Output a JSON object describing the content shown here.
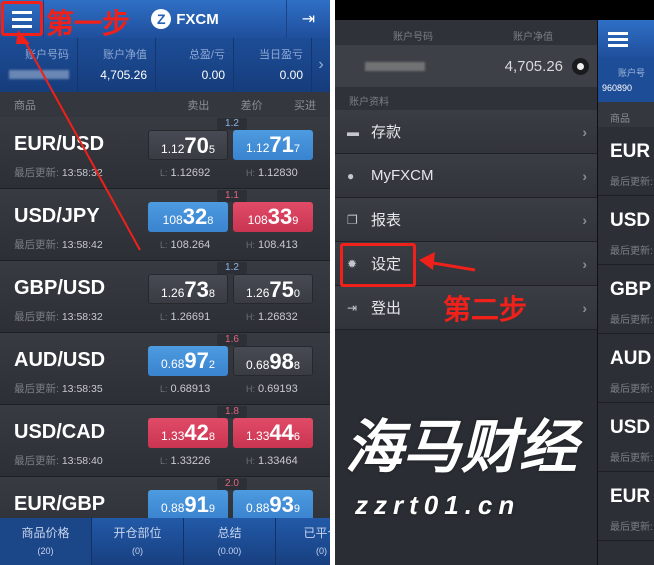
{
  "left": {
    "app_name": "FXCM",
    "account": {
      "labels": [
        "账户号码",
        "账户净值",
        "总盈/亏",
        "当日盈亏"
      ],
      "equity": "4,705.26",
      "total_pl": "0.00",
      "daily_pl": "0.00"
    },
    "columns": [
      "商品",
      "卖出",
      "差价",
      "买进"
    ],
    "update_label": "最后更新:",
    "rows": [
      {
        "symbol": "EUR/USD",
        "time": "13:58:32",
        "spread": "1.2",
        "sell": [
          "1.12",
          "70",
          "5"
        ],
        "buy": [
          "1.12",
          "71",
          "7"
        ],
        "sell_color": "gray",
        "buy_color": "blue",
        "low": "1.12692",
        "high": "1.12830"
      },
      {
        "symbol": "USD/JPY",
        "time": "13:58:42",
        "spread": "1.1",
        "sell": [
          "108",
          "32",
          "8"
        ],
        "buy": [
          "108",
          "33",
          "9"
        ],
        "sell_color": "blue",
        "buy_color": "red",
        "low": "108.264",
        "high": "108.413"
      },
      {
        "symbol": "GBP/USD",
        "time": "13:58:32",
        "spread": "1.2",
        "sell": [
          "1.26",
          "73",
          "8"
        ],
        "buy": [
          "1.26",
          "75",
          "0"
        ],
        "sell_color": "gray",
        "buy_color": "gray",
        "low": "1.26691",
        "high": "1.26832"
      },
      {
        "symbol": "AUD/USD",
        "time": "13:58:35",
        "spread": "1.6",
        "sell": [
          "0.68",
          "97",
          "2"
        ],
        "buy": [
          "0.68",
          "98",
          "8"
        ],
        "sell_color": "blue",
        "buy_color": "gray",
        "low": "0.68913",
        "high": "0.69193"
      },
      {
        "symbol": "USD/CAD",
        "time": "13:58:40",
        "spread": "1.8",
        "sell": [
          "1.33",
          "42",
          "8"
        ],
        "buy": [
          "1.33",
          "44",
          "6"
        ],
        "sell_color": "red",
        "buy_color": "red",
        "low": "1.33226",
        "high": "1.33464"
      },
      {
        "symbol": "EUR/GBP",
        "time": "",
        "spread": "2.0",
        "sell": [
          "0.88",
          "91",
          "9"
        ],
        "buy": [
          "0.88",
          "93",
          "9"
        ],
        "sell_color": "blue",
        "buy_color": "blue",
        "low": "",
        "high": ""
      }
    ],
    "tabs": [
      {
        "label": "商品价格",
        "count": "(20)"
      },
      {
        "label": "开仓部位",
        "count": "(0)"
      },
      {
        "label": "总结",
        "count": "(0.00)"
      },
      {
        "label": "已平仓",
        "count": "(0)"
      }
    ],
    "annotation": "第一步"
  },
  "right": {
    "header_labels": [
      "账户号码",
      "账户净值"
    ],
    "equity": "4,705.26",
    "section": "账户资料",
    "menu": [
      {
        "label": "存款",
        "icon": "card-icon"
      },
      {
        "label": "MyFXCM",
        "icon": "user-icon"
      },
      {
        "label": "报表",
        "icon": "report-icon"
      },
      {
        "label": "设定",
        "icon": "gear-icon"
      },
      {
        "label": "登出",
        "icon": "logout-icon"
      }
    ],
    "annotation": "第二步",
    "peek": {
      "account_label": "账户号",
      "account_no": "960890",
      "column": "商品",
      "rows": [
        "EUR",
        "USD",
        "GBP",
        "AUD",
        "USD",
        "EUR"
      ]
    }
  },
  "watermark": {
    "name": "海马财经",
    "url": "zzrt01.cn"
  },
  "colors": {
    "blue": "#3a83cf",
    "red": "#c93450",
    "annotation": "#f0201a",
    "header": "#2563b8"
  }
}
